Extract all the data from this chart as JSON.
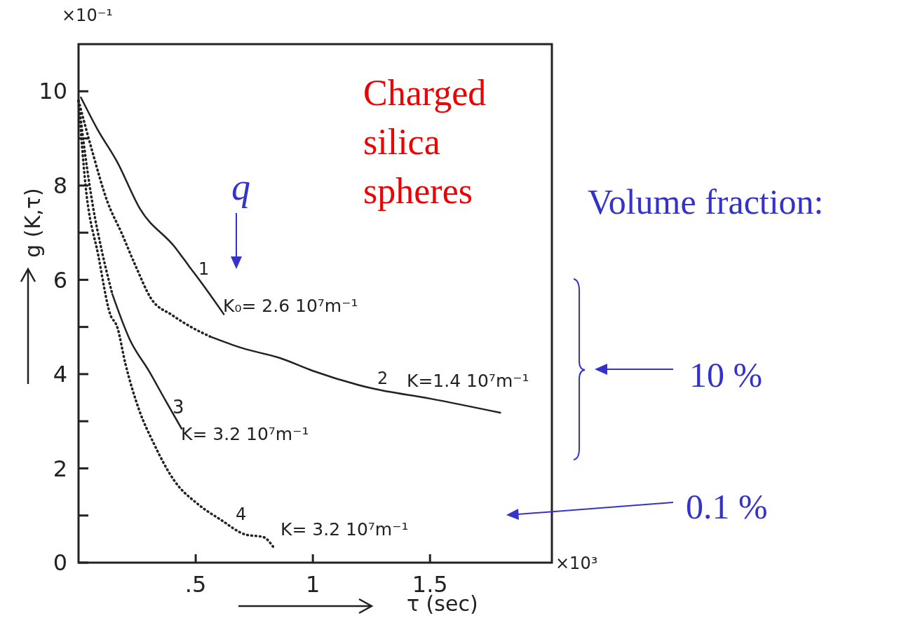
{
  "chart_data": {
    "type": "line",
    "xlabel": "τ (sec)",
    "ylabel": "g (K,τ)",
    "xlim": [
      0,
      2.02
    ],
    "ylim": [
      0,
      11
    ],
    "xticks": [
      {
        "value": 0.5,
        "label": ".5"
      },
      1,
      1.5
    ],
    "yticks": [
      0,
      {
        "value": 1,
        "label": null
      },
      2,
      {
        "value": 3,
        "label": null
      },
      4,
      {
        "value": 5,
        "label": null
      },
      6,
      {
        "value": 7,
        "label": null
      },
      8,
      {
        "value": 9,
        "label": null
      },
      10
    ],
    "grid": false,
    "marker": "none",
    "series": [
      {
        "color": "#222222",
        "line_style": "solid",
        "x": [
          0.01,
          0.08,
          0.165,
          0.263,
          0.41,
          0.47,
          0.53,
          0.62
        ],
        "values": [
          9.87,
          9.2,
          8.5,
          7.5,
          6.7,
          6.3,
          5.9,
          5.27
        ]
      },
      {
        "color": "#222222",
        "line_style": "dotted",
        "x": [
          0.0,
          0.06,
          0.123,
          0.183,
          0.243,
          0.31,
          0.4,
          0.48,
          0.56
        ],
        "values": [
          9.8,
          8.7,
          7.66,
          7.0,
          6.3,
          5.6,
          5.25,
          5.0,
          4.8
        ]
      },
      {
        "color": "#222222",
        "line_style": "solid",
        "x": [
          0.56,
          0.7,
          0.86,
          1.0,
          1.25,
          1.5,
          1.8
        ],
        "values": [
          4.8,
          4.55,
          4.34,
          4.07,
          3.7,
          3.48,
          3.18
        ]
      },
      {
        "color": "#222222",
        "line_style": "dotted",
        "x": [
          0.0,
          0.03,
          0.06,
          0.1,
          0.144
        ],
        "values": [
          9.8,
          8.6,
          7.6,
          6.6,
          5.7
        ]
      },
      {
        "color": "#222222",
        "line_style": "solid",
        "x": [
          0.144,
          0.22,
          0.3,
          0.37,
          0.44
        ],
        "values": [
          5.7,
          4.72,
          4.07,
          3.45,
          2.84
        ]
      },
      {
        "color": "#222222",
        "line_style": "dotted",
        "x": [
          0.0,
          0.03,
          0.085,
          0.135,
          0.165,
          0.2,
          0.26,
          0.32,
          0.41,
          0.51,
          0.61,
          0.71,
          0.79,
          0.83
        ],
        "values": [
          9.8,
          8.0,
          6.5,
          5.27,
          5.0,
          4.22,
          3.22,
          2.54,
          1.73,
          1.24,
          0.9,
          0.6,
          0.54,
          0.34
        ]
      }
    ],
    "annotations": [
      "×10⁻¹",
      "×10³",
      "Charged silica spheres",
      "q",
      "Volume fraction:",
      "10 %",
      "0.1 %",
      "1",
      "K₀= 2.6 10⁷m⁻¹",
      "2",
      "K=1.4 10⁷m⁻¹",
      "3",
      "K= 3.2 10⁷m⁻¹",
      "4",
      "K= 3.2 10⁷m⁻¹"
    ]
  }
}
